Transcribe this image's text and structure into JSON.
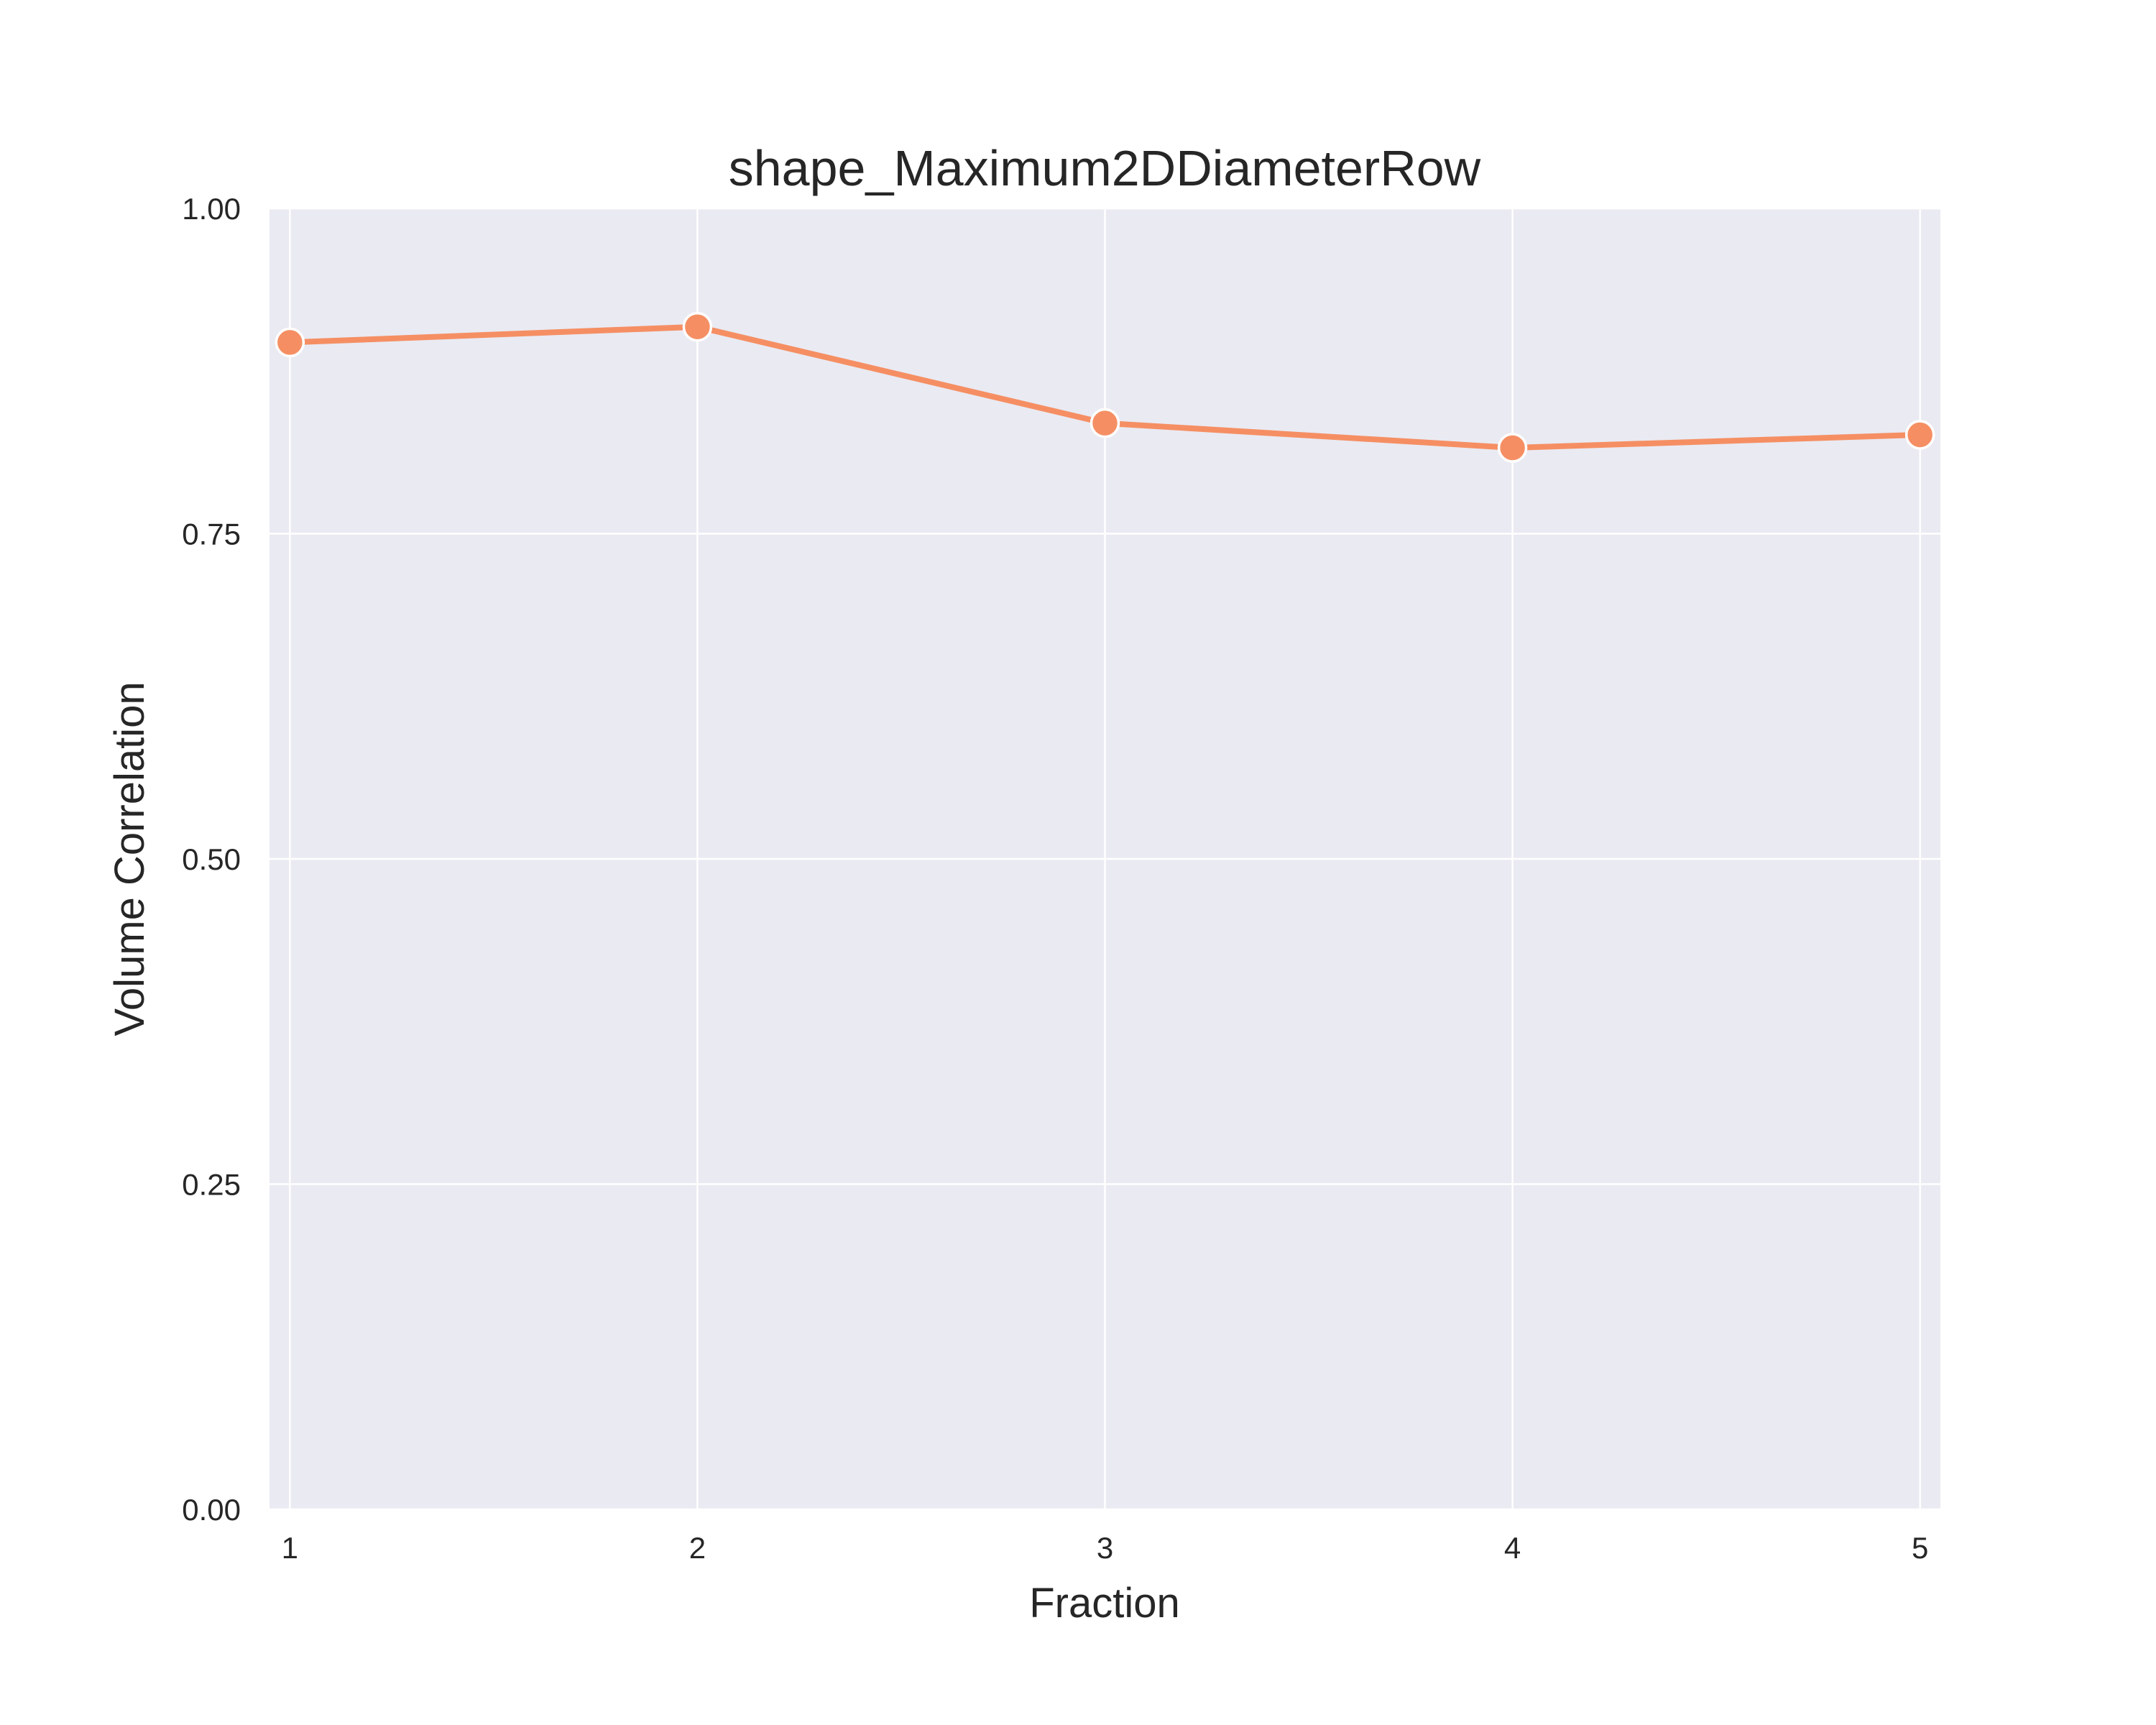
{
  "chart_data": {
    "type": "line",
    "title": "shape_Maximum2DDiameterRow",
    "xlabel": "Fraction",
    "ylabel": "Volume Correlation",
    "x": [
      1,
      2,
      3,
      4,
      5
    ],
    "x_tick_labels": [
      "1",
      "2",
      "3",
      "4",
      "5"
    ],
    "series": [
      {
        "values": [
          0.897,
          0.909,
          0.835,
          0.816,
          0.826
        ]
      }
    ],
    "xlim": [
      0.95,
      5.05
    ],
    "ylim": [
      0.0,
      1.0
    ],
    "y_ticks": [
      0.0,
      0.25,
      0.5,
      0.75,
      1.0
    ],
    "y_tick_labels": [
      "0.00",
      "0.25",
      "0.50",
      "0.75",
      "1.00"
    ],
    "grid": true,
    "legend": "none",
    "colors": {
      "line": "#f58f63",
      "marker_edge": "#ffffff",
      "plot_background": "#eaeaf2",
      "grid": "#ffffff",
      "text": "#262626"
    }
  }
}
